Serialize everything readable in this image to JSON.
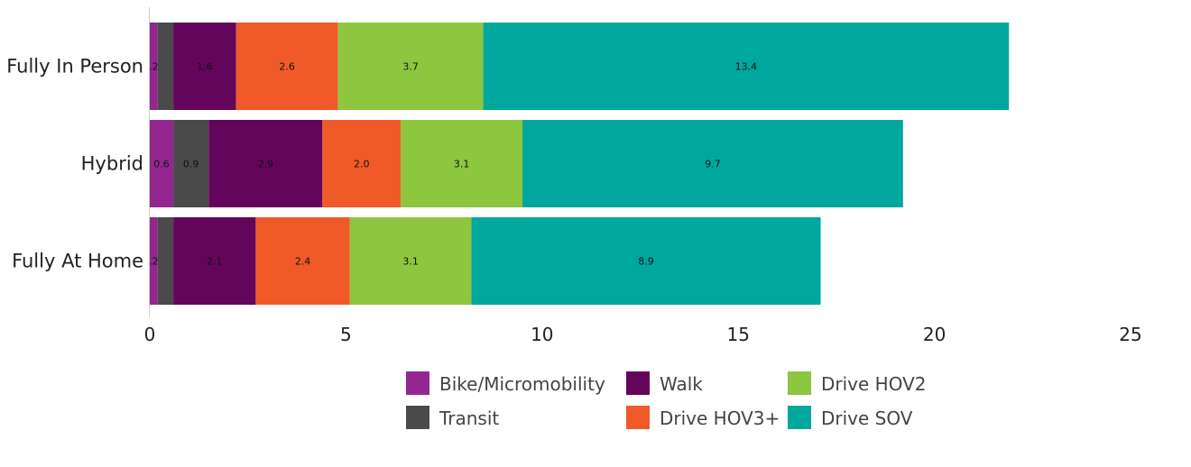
{
  "chart_data": {
    "type": "bar",
    "orientation": "horizontal",
    "stacked": true,
    "categories": [
      "Fully In Person",
      "Hybrid",
      "Fully At Home"
    ],
    "series": [
      {
        "name": "Bike/Micromobility",
        "color": "#93278f",
        "values": [
          0.2,
          0.6,
          0.2
        ],
        "labels": [
          ".2",
          "0.6",
          ".2"
        ]
      },
      {
        "name": "Transit",
        "color": "#4a4a4a",
        "values": [
          0.4,
          0.9,
          0.4
        ],
        "labels": [
          "",
          "0.9",
          ""
        ]
      },
      {
        "name": "Walk",
        "color": "#64055c",
        "values": [
          1.6,
          2.9,
          2.1
        ],
        "labels": [
          "1.6",
          "2.9",
          "2.1"
        ]
      },
      {
        "name": "Drive HOV3+",
        "color": "#f05a28",
        "values": [
          2.6,
          2.0,
          2.4
        ],
        "labels": [
          "2.6",
          "2.0",
          "2.4"
        ]
      },
      {
        "name": "Drive HOV2",
        "color": "#8dc63f",
        "values": [
          3.7,
          3.1,
          3.1
        ],
        "labels": [
          "3.7",
          "3.1",
          "3.1"
        ]
      },
      {
        "name": "Drive SOV",
        "color": "#00a79d",
        "values": [
          13.4,
          9.7,
          8.9
        ],
        "labels": [
          "13.4",
          "9.7",
          "8.9"
        ]
      }
    ],
    "xlim": [
      0,
      25
    ],
    "xticks": [
      "0",
      "5",
      "10",
      "15",
      "20",
      "25"
    ],
    "legend_position": "bottom",
    "grid": false
  }
}
